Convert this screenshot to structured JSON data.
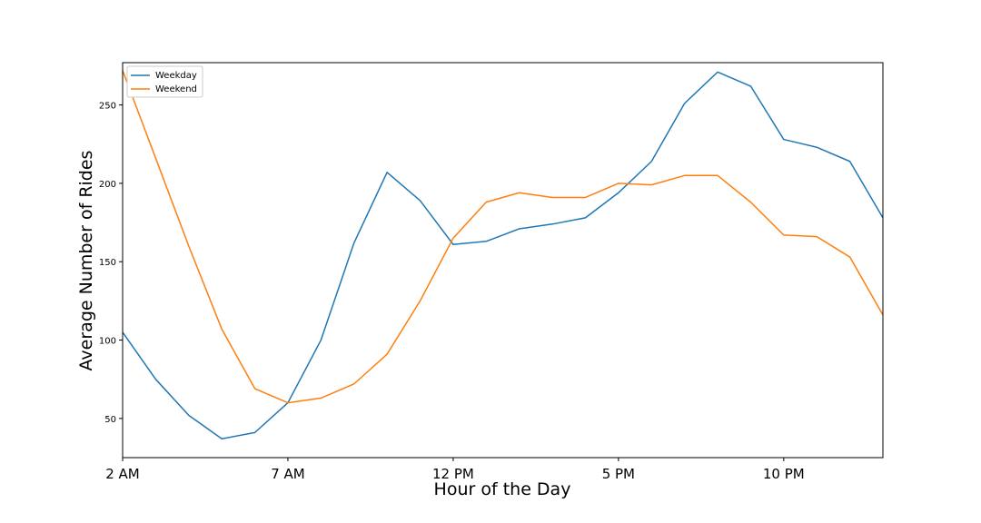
{
  "chart_data": {
    "type": "line",
    "title": "",
    "xlabel": "Hour of the Day",
    "ylabel": "Average Number of Rides",
    "x": [
      2,
      3,
      4,
      5,
      6,
      7,
      8,
      9,
      10,
      11,
      12,
      13,
      14,
      15,
      16,
      17,
      18,
      19,
      20,
      21,
      22,
      23,
      24,
      25
    ],
    "xlim": [
      2,
      25
    ],
    "ylim": [
      25,
      277
    ],
    "x_ticks": [
      {
        "value": 2,
        "label": "2 AM"
      },
      {
        "value": 7,
        "label": "7 AM"
      },
      {
        "value": 12,
        "label": "12 PM"
      },
      {
        "value": 17,
        "label": "5 PM"
      },
      {
        "value": 22,
        "label": "10 PM"
      }
    ],
    "y_ticks": [
      50,
      100,
      150,
      200,
      250
    ],
    "grid": false,
    "legend_position": "top-left",
    "series": [
      {
        "name": "Weekday",
        "color": "#1f77b4",
        "values": [
          105,
          75,
          52,
          37,
          41,
          60,
          100,
          162,
          207,
          189,
          161,
          163,
          171,
          174,
          178,
          194,
          214,
          251,
          271,
          262,
          228,
          223,
          214,
          178
        ]
      },
      {
        "name": "Weekend",
        "color": "#ff7f0e",
        "values": [
          272,
          216,
          160,
          107,
          69,
          60,
          63,
          72,
          91,
          125,
          165,
          188,
          194,
          191,
          191,
          200,
          199,
          205,
          205,
          188,
          167,
          166,
          153,
          116
        ]
      }
    ]
  }
}
